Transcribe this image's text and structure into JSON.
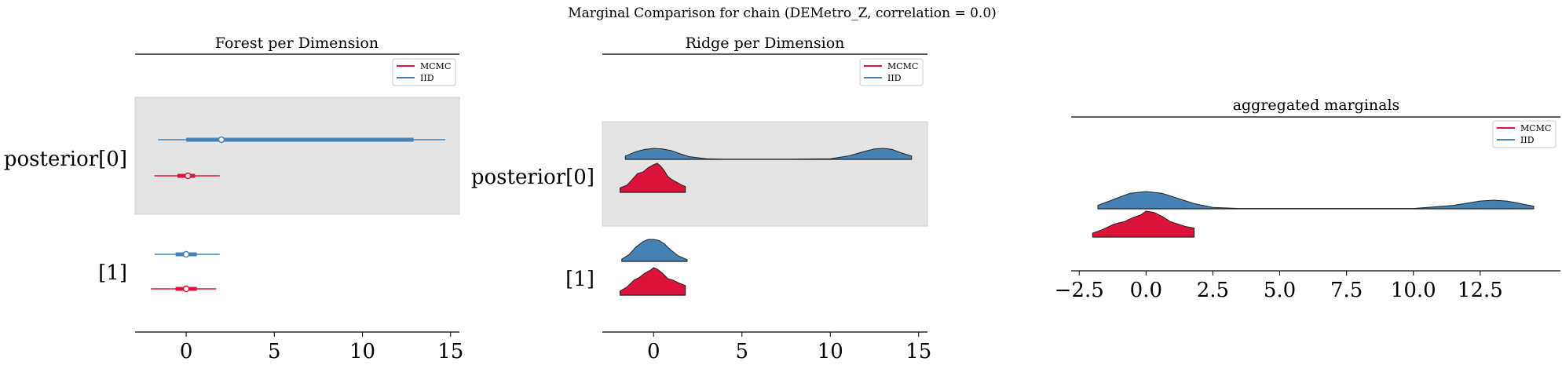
{
  "figure": {
    "suptitle": "Marginal Comparison for chain (DEMetro_Z, correlation = 0.0)"
  },
  "colors": {
    "mcmc": "#dc143c",
    "iid": "#4682b4",
    "shade": "#e4e4e4",
    "axis": "#000000"
  },
  "legend": {
    "mcmc": "MCMC",
    "iid": "IID"
  },
  "chart_data": [
    {
      "type": "forest",
      "title": "Forest per Dimension",
      "xlim": [
        -2.9,
        15.5
      ],
      "xticks": [
        "0",
        "5",
        "10",
        "15"
      ],
      "xtick_values": [
        0,
        5,
        10,
        15
      ],
      "ylabels": [
        "posterior[0]",
        "[1]"
      ],
      "series": [
        {
          "name": "IID",
          "dimension": "posterior[0]",
          "hdi94": [
            -1.6,
            14.7
          ],
          "iqr": [
            0.0,
            12.9
          ],
          "mean": 2.0
        },
        {
          "name": "MCMC",
          "dimension": "posterior[0]",
          "hdi94": [
            -1.8,
            1.9
          ],
          "iqr": [
            -0.5,
            0.5
          ],
          "mean": 0.1
        },
        {
          "name": "IID",
          "dimension": "[1]",
          "hdi94": [
            -1.8,
            1.9
          ],
          "iqr": [
            -0.6,
            0.6
          ],
          "mean": 0.0
        },
        {
          "name": "MCMC",
          "dimension": "[1]",
          "hdi94": [
            -2.0,
            1.7
          ],
          "iqr": [
            -0.6,
            0.6
          ],
          "mean": 0.0
        }
      ]
    },
    {
      "type": "ridgeplot",
      "title": "Ridge per Dimension",
      "xlim": [
        -2.9,
        15.5
      ],
      "xticks": [
        "0",
        "5",
        "10",
        "15"
      ],
      "xtick_values": [
        0,
        5,
        10,
        15
      ],
      "ylabels": [
        "posterior[0]",
        "[1]"
      ],
      "series": [
        {
          "name": "IID",
          "dimension": "posterior[0]",
          "range": [
            -1.6,
            14.6
          ],
          "density_x": [
            -1.6,
            -1.0,
            -0.5,
            0.0,
            0.5,
            1.0,
            1.5,
            2.0,
            3.0,
            4.0,
            6.0,
            8.0,
            10.0,
            11.0,
            12.0,
            12.5,
            13.0,
            13.5,
            14.0,
            14.6
          ],
          "density_y": [
            0.3,
            0.7,
            0.9,
            1.0,
            0.95,
            0.8,
            0.5,
            0.25,
            0.05,
            0.02,
            0.02,
            0.02,
            0.05,
            0.3,
            0.75,
            0.95,
            1.0,
            0.9,
            0.6,
            0.3
          ]
        },
        {
          "name": "MCMC",
          "dimension": "posterior[0]",
          "range": [
            -1.9,
            1.8
          ],
          "density_x": [
            -1.9,
            -1.5,
            -1.2,
            -0.9,
            -0.6,
            -0.3,
            0.0,
            0.2,
            0.4,
            0.6,
            0.8,
            1.0,
            1.3,
            1.6,
            1.8
          ],
          "density_y": [
            0.15,
            0.25,
            0.45,
            0.65,
            0.7,
            0.85,
            0.95,
            1.0,
            0.9,
            0.75,
            0.55,
            0.45,
            0.35,
            0.25,
            0.2
          ]
        },
        {
          "name": "IID",
          "dimension": "[1]",
          "range": [
            -1.8,
            1.9
          ],
          "density_x": [
            -1.8,
            -1.4,
            -1.0,
            -0.6,
            -0.3,
            0.0,
            0.3,
            0.6,
            1.0,
            1.4,
            1.9
          ],
          "density_y": [
            0.1,
            0.3,
            0.65,
            0.9,
            1.0,
            1.0,
            0.95,
            0.8,
            0.5,
            0.25,
            0.08
          ]
        },
        {
          "name": "MCMC",
          "dimension": "[1]",
          "range": [
            -1.9,
            1.8
          ],
          "density_x": [
            -1.9,
            -1.5,
            -1.1,
            -0.8,
            -0.5,
            -0.2,
            0.0,
            0.2,
            0.5,
            0.8,
            1.1,
            1.4,
            1.8
          ],
          "density_y": [
            0.15,
            0.3,
            0.55,
            0.65,
            0.8,
            0.9,
            1.0,
            0.95,
            0.8,
            0.6,
            0.55,
            0.45,
            0.35
          ]
        }
      ]
    },
    {
      "type": "density",
      "title": "aggregated marginals",
      "xlim": [
        -2.8,
        15.5
      ],
      "xticks": [
        "−2.5",
        "0.0",
        "2.5",
        "5.0",
        "7.5",
        "10.0",
        "12.5"
      ],
      "xtick_values": [
        -2.5,
        0.0,
        2.5,
        5.0,
        7.5,
        10.0,
        12.5
      ],
      "series": [
        {
          "name": "IID",
          "range": [
            -1.8,
            14.5
          ],
          "density_x": [
            -1.8,
            -1.2,
            -0.6,
            0.0,
            0.6,
            1.2,
            1.8,
            2.5,
            3.5,
            5.0,
            7.5,
            10.0,
            11.5,
            12.5,
            13.0,
            13.5,
            14.0,
            14.5
          ],
          "density_y": [
            0.2,
            0.55,
            0.9,
            1.0,
            0.9,
            0.6,
            0.3,
            0.08,
            0.02,
            0.02,
            0.02,
            0.02,
            0.2,
            0.45,
            0.5,
            0.45,
            0.3,
            0.15
          ]
        },
        {
          "name": "MCMC",
          "range": [
            -2.0,
            1.8
          ],
          "density_x": [
            -2.0,
            -1.6,
            -1.2,
            -0.8,
            -0.5,
            -0.2,
            0.0,
            0.3,
            0.6,
            0.9,
            1.2,
            1.5,
            1.8
          ],
          "density_y": [
            0.15,
            0.3,
            0.5,
            0.6,
            0.75,
            0.85,
            1.0,
            0.95,
            0.8,
            0.6,
            0.5,
            0.4,
            0.35
          ]
        }
      ]
    }
  ]
}
